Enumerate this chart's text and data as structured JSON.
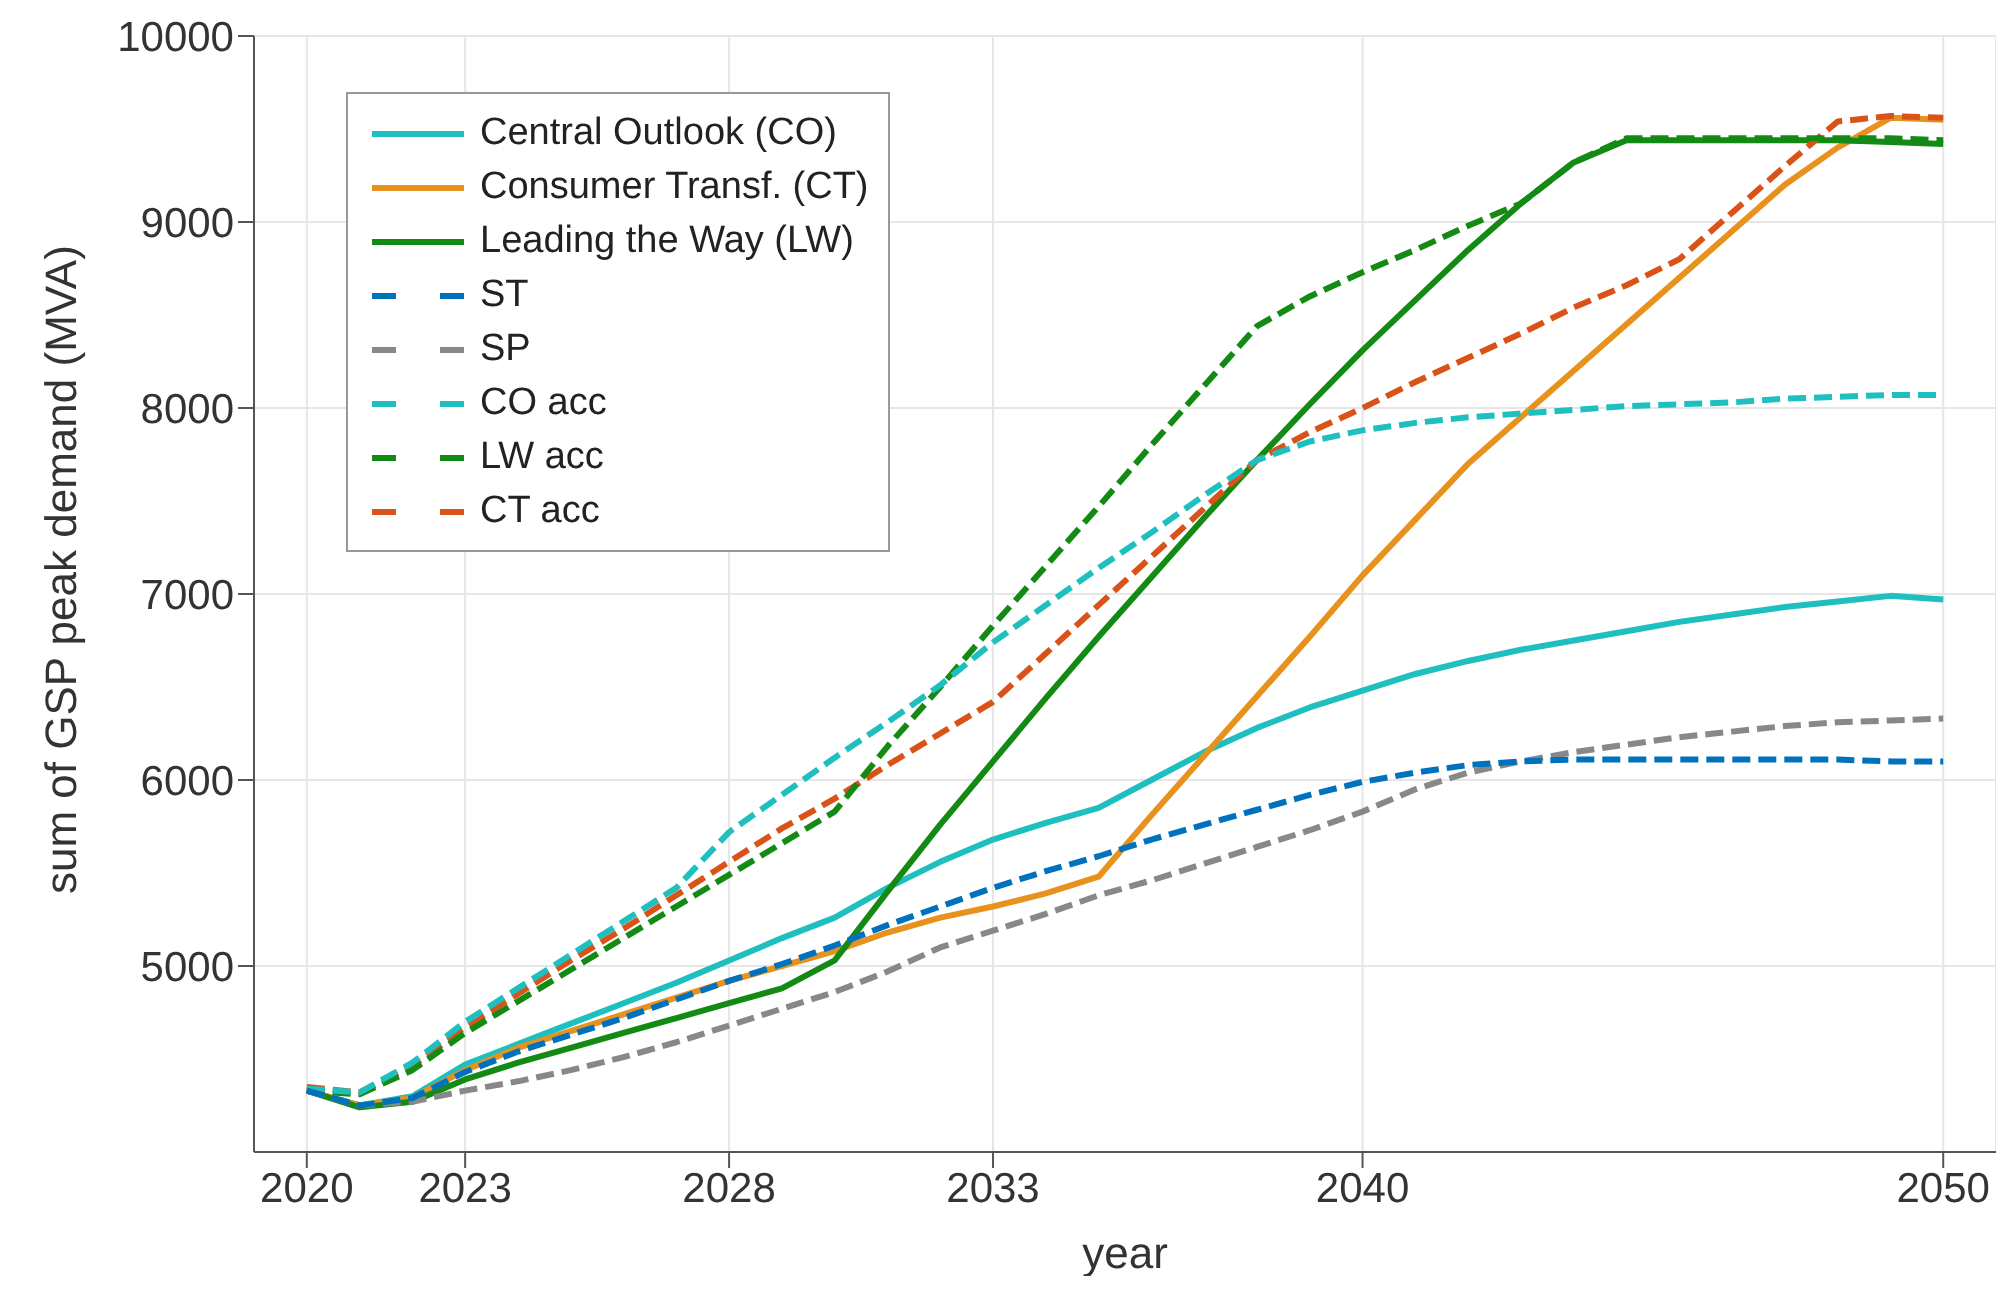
{
  "chart_data": {
    "type": "line",
    "xlabel": "year",
    "ylabel": "sum of GSP peak demand (MVA)",
    "categories": [
      "2020",
      null,
      null,
      "2023",
      null,
      null,
      null,
      null,
      "2028",
      null,
      null,
      null,
      null,
      "2033",
      null,
      null,
      null,
      null,
      null,
      null,
      "2040",
      null,
      null,
      null,
      null,
      null,
      null,
      null,
      null,
      null,
      null,
      "2050"
    ],
    "ylim": [
      4000,
      10000
    ],
    "yticks": [
      5000,
      6000,
      7000,
      8000,
      9000,
      10000
    ],
    "grid": true,
    "legend": "top left",
    "series": [
      {
        "name": "Central Outlook (CO)",
        "color": "#1fbfbf",
        "line_style": "solid",
        "values": [
          4330,
          4250,
          4300,
          4470,
          4580,
          4690,
          4800,
          4910,
          5030,
          5150,
          5260,
          5420,
          5560,
          5680,
          5770,
          5850,
          6000,
          6150,
          6280,
          6390,
          6480,
          6570,
          6640,
          6700,
          6750,
          6800,
          6850,
          6890,
          6930,
          6960,
          6990,
          6970
        ]
      },
      {
        "name": "Consumer Transf. (CT)",
        "color": "#e8921e",
        "line_style": "solid",
        "values": [
          4330,
          4250,
          4290,
          4440,
          4560,
          4650,
          4740,
          4830,
          4920,
          5000,
          5080,
          5180,
          5260,
          5320,
          5390,
          5480,
          5810,
          6130,
          6450,
          6770,
          7100,
          7400,
          7700,
          7950,
          8200,
          8450,
          8700,
          8950,
          9200,
          9400,
          9560,
          9550
        ]
      },
      {
        "name": "Leading the Way (LW)",
        "color": "#138a13",
        "line_style": "solid",
        "values": [
          4330,
          4240,
          4270,
          4390,
          4480,
          4560,
          4640,
          4720,
          4800,
          4880,
          5030,
          5400,
          5760,
          6100,
          6440,
          6770,
          7090,
          7410,
          7720,
          8020,
          8310,
          8580,
          8850,
          9100,
          9320,
          9440,
          9440,
          9440,
          9440,
          9440,
          9430,
          9420
        ]
      },
      {
        "name": "ST",
        "color": "#0072bd",
        "line_style": "dashed",
        "values": [
          4330,
          4250,
          4290,
          4430,
          4540,
          4630,
          4720,
          4820,
          4920,
          5010,
          5110,
          5220,
          5320,
          5420,
          5510,
          5590,
          5680,
          5760,
          5840,
          5920,
          5990,
          6040,
          6080,
          6100,
          6110,
          6110,
          6110,
          6110,
          6110,
          6110,
          6100,
          6100
        ]
      },
      {
        "name": "SP",
        "color": "#888888",
        "line_style": "dashed",
        "values": [
          4330,
          4250,
          4270,
          4330,
          4380,
          4440,
          4510,
          4590,
          4680,
          4770,
          4860,
          4970,
          5100,
          5190,
          5280,
          5380,
          5460,
          5550,
          5640,
          5730,
          5830,
          5950,
          6040,
          6100,
          6150,
          6190,
          6230,
          6260,
          6290,
          6310,
          6320,
          6330
        ]
      },
      {
        "name": "CO acc",
        "color": "#1fbfbf",
        "line_style": "dashed",
        "values": [
          4340,
          4320,
          4480,
          4700,
          4880,
          5060,
          5240,
          5420,
          5720,
          5920,
          6120,
          6310,
          6510,
          6740,
          6940,
          7140,
          7330,
          7530,
          7720,
          7820,
          7880,
          7920,
          7950,
          7970,
          7990,
          8010,
          8020,
          8030,
          8050,
          8060,
          8070,
          8070
        ]
      },
      {
        "name": "LW acc",
        "color": "#138a13",
        "line_style": "dashed",
        "values": [
          4330,
          4310,
          4440,
          4640,
          4810,
          4980,
          5150,
          5320,
          5490,
          5660,
          5830,
          6180,
          6500,
          6830,
          7150,
          7470,
          7800,
          8120,
          8440,
          8600,
          8730,
          8850,
          8980,
          9100,
          9320,
          9450,
          9450,
          9450,
          9450,
          9450,
          9450,
          9440
        ]
      },
      {
        "name": "CT acc",
        "color": "#d95319",
        "line_style": "dashed",
        "values": [
          4350,
          4320,
          4460,
          4670,
          4850,
          5030,
          5200,
          5380,
          5560,
          5740,
          5900,
          6080,
          6250,
          6420,
          6680,
          6940,
          7200,
          7460,
          7720,
          7870,
          8000,
          8140,
          8270,
          8400,
          8540,
          8660,
          8800,
          9050,
          9300,
          9540,
          9570,
          9560
        ]
      }
    ]
  }
}
